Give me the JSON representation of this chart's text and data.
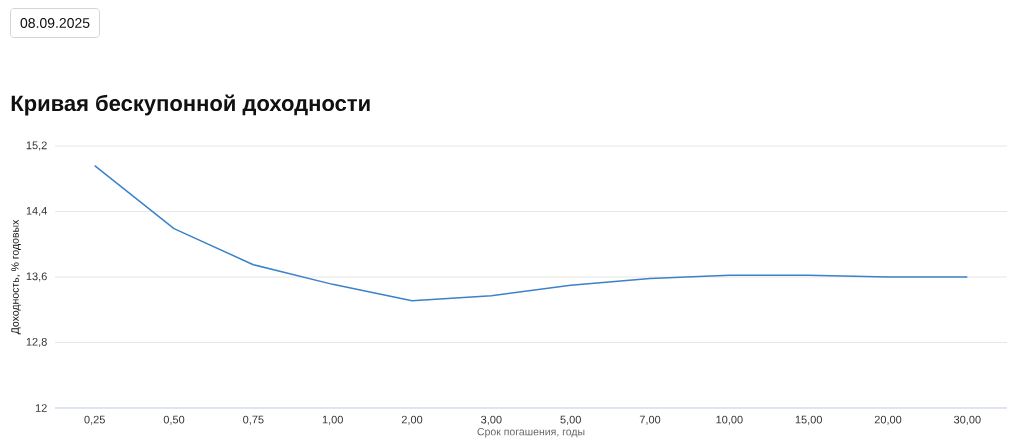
{
  "chart_data": {
    "type": "line",
    "title": "Кривая бескупонной доходности",
    "xlabel": "Срок погашения, годы",
    "ylabel": "Доходность, % годовых",
    "annotations": [
      "08.09.2025"
    ],
    "categories": [
      "0,25",
      "0,50",
      "0,75",
      "1,00",
      "2,00",
      "3,00",
      "5,00",
      "7,00",
      "10,00",
      "15,00",
      "20,00",
      "30,00"
    ],
    "series": [
      {
        "color": "#3b82c8",
        "values": [
          14.96,
          14.19,
          13.75,
          13.51,
          13.31,
          13.37,
          13.5,
          13.58,
          13.62,
          13.62,
          13.6,
          13.6
        ]
      }
    ],
    "ylim": [
      12,
      15.2
    ],
    "yticks": [
      12,
      {
        "value": 12.8,
        "label": "12,8"
      },
      {
        "value": 13.6,
        "label": "13,6"
      },
      {
        "value": 14.4,
        "label": "14,4"
      },
      {
        "value": 15.2,
        "label": "15,2"
      }
    ],
    "grid": "y",
    "line_style": "solid"
  }
}
